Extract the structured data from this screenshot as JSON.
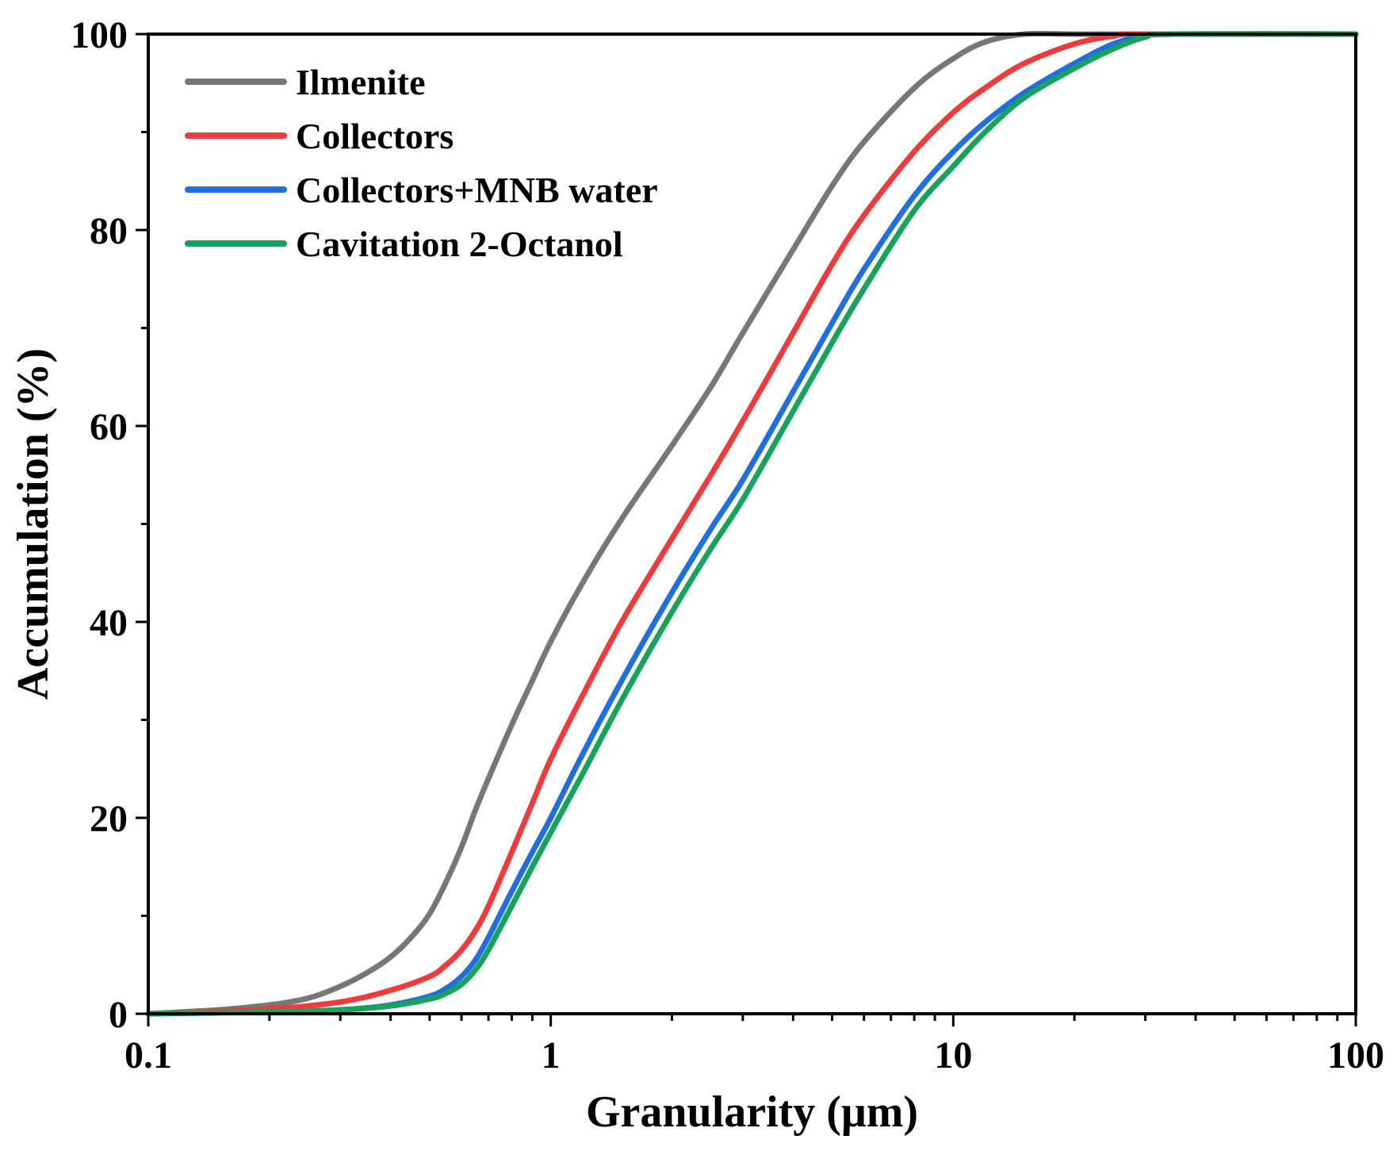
{
  "chart_data": {
    "type": "line",
    "title": "",
    "xlabel": "Granularity (μm)",
    "ylabel": "Accumulation (%)",
    "xscale": "log",
    "xlim": [
      0.1,
      100
    ],
    "ylim": [
      0,
      100
    ],
    "xticks": [
      0.1,
      1,
      10,
      100
    ],
    "xtick_labels": [
      "0.1",
      "1",
      "10",
      "100"
    ],
    "yticks": [
      0,
      20,
      40,
      60,
      80,
      100
    ],
    "ytick_labels": [
      "0",
      "20",
      "40",
      "60",
      "80",
      "100"
    ],
    "grid": false,
    "legend_position": "top-left",
    "series": [
      {
        "name": "Ilmenite",
        "color": "#777777",
        "x": [
          0.1,
          0.15,
          0.2,
          0.25,
          0.3,
          0.35,
          0.4,
          0.45,
          0.5,
          0.55,
          0.6,
          0.65,
          0.7,
          0.8,
          0.9,
          1.0,
          1.2,
          1.5,
          2.0,
          2.5,
          3.0,
          4.0,
          5.0,
          6.0,
          8.0,
          10.0,
          12.0,
          15.0,
          20.0,
          30.0,
          50.0,
          100.0
        ],
        "y": [
          0,
          0.4,
          0.9,
          1.6,
          2.8,
          4.2,
          5.8,
          7.8,
          10.2,
          13.5,
          17.0,
          20.8,
          24.0,
          29.5,
          34.0,
          38.0,
          44.0,
          50.5,
          58.0,
          64.0,
          69.5,
          78.0,
          84.5,
          89.0,
          94.5,
          97.5,
          99.2,
          100,
          100,
          100,
          100,
          100
        ]
      },
      {
        "name": "Collectors",
        "color": "#ef3b3b",
        "x": [
          0.1,
          0.2,
          0.3,
          0.4,
          0.5,
          0.55,
          0.6,
          0.65,
          0.7,
          0.8,
          0.9,
          1.0,
          1.2,
          1.5,
          2.0,
          2.5,
          3.0,
          4.0,
          5.0,
          6.0,
          8.0,
          10.0,
          12.0,
          15.0,
          20.0,
          25.0,
          30.0,
          100.0
        ],
        "y": [
          0,
          0.5,
          1.2,
          2.4,
          3.8,
          5.0,
          6.5,
          8.5,
          11.0,
          16.5,
          21.5,
          26.0,
          32.5,
          40.0,
          48.5,
          55.0,
          60.5,
          69.5,
          76.5,
          81.5,
          88.0,
          92.0,
          94.5,
          97.0,
          99.0,
          99.8,
          100,
          100
        ]
      },
      {
        "name": "Collectors+MNB water",
        "color": "#1f6fe0",
        "x": [
          0.1,
          0.2,
          0.3,
          0.4,
          0.5,
          0.55,
          0.6,
          0.65,
          0.7,
          0.8,
          0.9,
          1.0,
          1.2,
          1.5,
          2.0,
          2.5,
          3.0,
          4.0,
          5.0,
          6.0,
          8.0,
          10.0,
          12.0,
          15.0,
          20.0,
          25.0,
          30.0,
          35.0,
          100.0
        ],
        "y": [
          0,
          0.2,
          0.4,
          0.9,
          1.8,
          2.6,
          3.8,
          5.5,
          7.8,
          12.5,
          16.5,
          20.0,
          26.5,
          34.0,
          43.0,
          49.5,
          54.5,
          63.5,
          70.5,
          76.0,
          83.5,
          88.0,
          91.0,
          94.0,
          97.0,
          99.0,
          99.8,
          100,
          100
        ]
      },
      {
        "name": "Cavitation 2-Octanol",
        "color": "#17a35b",
        "x": [
          0.1,
          0.2,
          0.3,
          0.4,
          0.5,
          0.55,
          0.6,
          0.65,
          0.7,
          0.8,
          0.9,
          1.0,
          1.2,
          1.5,
          2.0,
          2.5,
          3.0,
          4.0,
          5.0,
          6.0,
          8.0,
          10.0,
          12.0,
          15.0,
          20.0,
          25.0,
          30.0,
          35.0,
          100.0
        ],
        "y": [
          0,
          0.2,
          0.4,
          0.8,
          1.5,
          2.1,
          3.0,
          4.5,
          6.5,
          11.0,
          15.0,
          18.5,
          24.5,
          32.0,
          41.0,
          47.5,
          52.5,
          61.5,
          68.5,
          74.0,
          82.0,
          86.5,
          90.0,
          93.5,
          96.5,
          98.5,
          99.7,
          100,
          100
        ]
      }
    ]
  }
}
